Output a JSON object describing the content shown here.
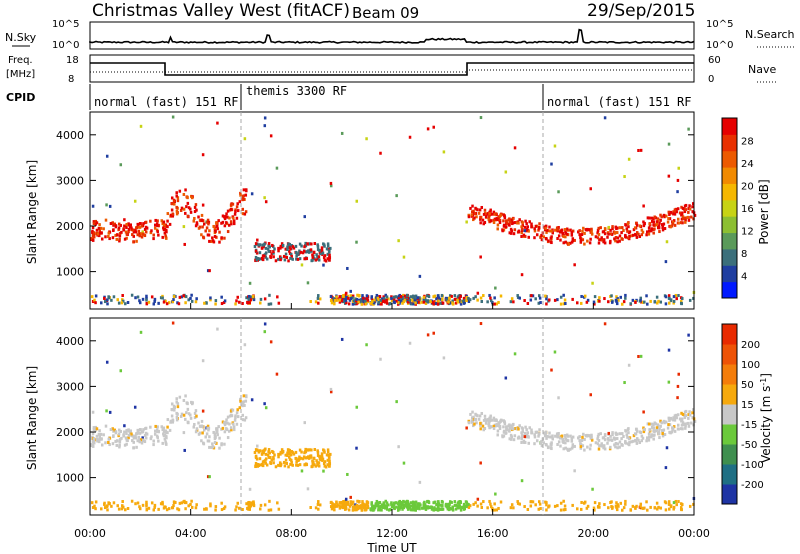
{
  "header": {
    "title": "Christmas Valley West (fitACF)",
    "beam": "Beam 09",
    "date": "29/Sep/2015"
  },
  "top_panels": {
    "nsky_label": "N.Sky",
    "nsky_ticks": [
      "10^5",
      "10^0"
    ],
    "nsearch_label": "N.Search",
    "nsearch_ticks": [
      "10^5",
      "10^0"
    ],
    "freq_label_1": "Freq.",
    "freq_label_2": "[MHz]",
    "freq_ticks": [
      "18",
      "8"
    ],
    "nave_label": "Nave",
    "nave_ticks": [
      "60",
      "0"
    ],
    "cpid_label": "CPID",
    "cpid_segments": [
      {
        "label": "normal (fast) 151 RF",
        "start_hour": 0
      },
      {
        "label": "themis 3300 RF",
        "start_hour": 6
      },
      {
        "label": "normal (fast) 151 RF",
        "start_hour": 18
      }
    ]
  },
  "chart_data": [
    {
      "type": "heatmap",
      "quantity": "Power",
      "ylabel": "Slant Range [km]",
      "yticks": [
        1000,
        2000,
        3000,
        4000
      ],
      "ylim": [
        180,
        4500
      ],
      "colorbar_label": "Power [dB]",
      "colorbar_ticks": [
        4,
        8,
        12,
        16,
        20,
        24,
        28
      ],
      "colorbar_colors": [
        "#0019ff",
        "#1f3ea0",
        "#3b6f7b",
        "#5a9a5a",
        "#8cbf32",
        "#c7d315",
        "#f5b700",
        "#f18a00",
        "#ec5a00",
        "#e83000",
        "#e50000"
      ]
    },
    {
      "type": "heatmap",
      "quantity": "Velocity",
      "ylabel": "Slant Range [km]",
      "yticks": [
        1000,
        2000,
        3000,
        4000
      ],
      "ylim": [
        180,
        4500
      ],
      "colorbar_label": "Velocity [m s^-1]",
      "colorbar_ticks": [
        200,
        100,
        50,
        15,
        -15,
        -50,
        -100,
        -200
      ],
      "colorbar_colors": [
        "#1e34a4",
        "#1f6f84",
        "#3f8f4f",
        "#6bc93b",
        "#c8c8c8",
        "#f6a90d",
        "#f47d0a",
        "#ee5306",
        "#e82a00"
      ]
    }
  ],
  "xaxis": {
    "label": "Time UT",
    "ticks": [
      "00:00",
      "04:00",
      "08:00",
      "12:00",
      "16:00",
      "20:00",
      "00:00"
    ],
    "xlim_hours": [
      0,
      24
    ]
  }
}
